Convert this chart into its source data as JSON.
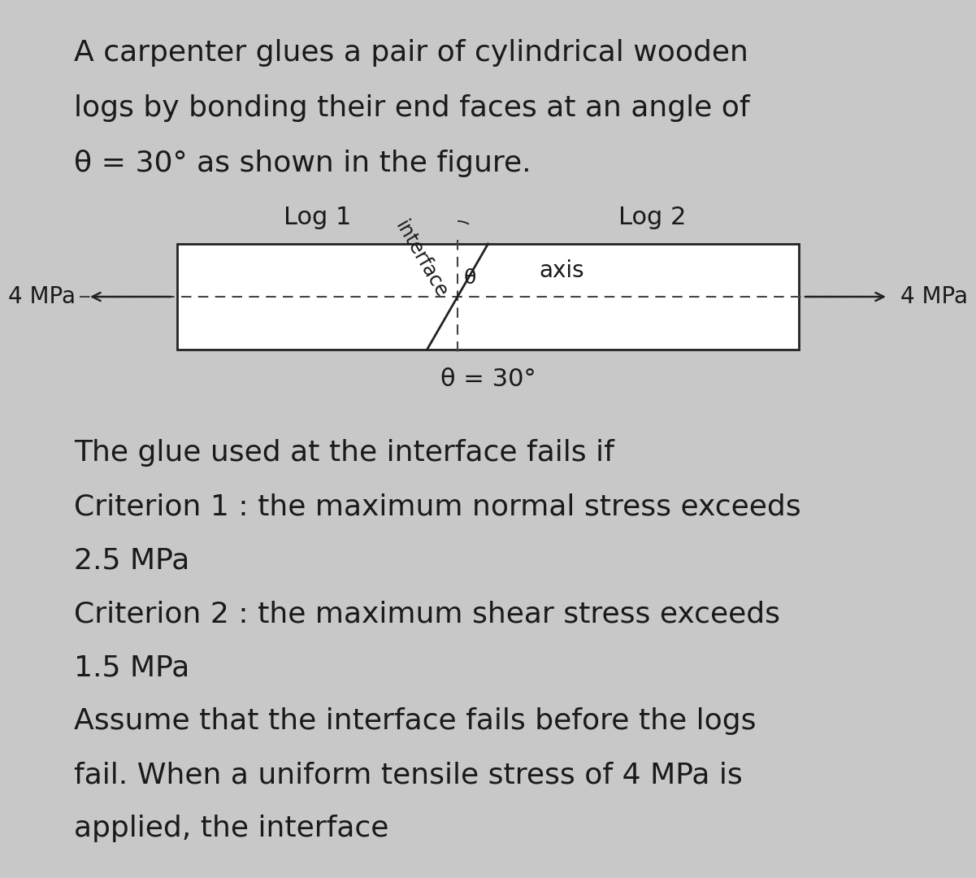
{
  "bg_color": "#c8c8c8",
  "page_color": "#dcdcdc",
  "title_lines": [
    "A carpenter glues a pair of cylindrical wooden",
    "logs by bonding their end faces at an angle of",
    "θ = 30° as shown in the figure."
  ],
  "log1_label": "Log 1",
  "log2_label": "Log 2",
  "axis_label": "axis",
  "interface_label": "interface",
  "theta_label": "θ",
  "theta_eq_label": "θ = 30°",
  "left_stress": "4 MPa",
  "right_stress": "4 MPa",
  "criterion_lines": [
    "The glue used at the interface fails if",
    "Criterion 1 : the maximum normal stress exceeds",
    "2.5 MPa",
    "Criterion 2 : the maximum shear stress exceeds",
    "1.5 MPa",
    "Assume that the interface fails before the logs",
    "fail. When a uniform tensile stress of 4 MPa is",
    "applied, the interface"
  ],
  "text_color": "#1a1a1a",
  "line_color": "#222222",
  "dashed_color": "#444444",
  "title_fontsize": 26,
  "body_fontsize": 26,
  "label_fontsize": 22,
  "small_fontsize": 18,
  "diagram_label_fontsize": 20
}
